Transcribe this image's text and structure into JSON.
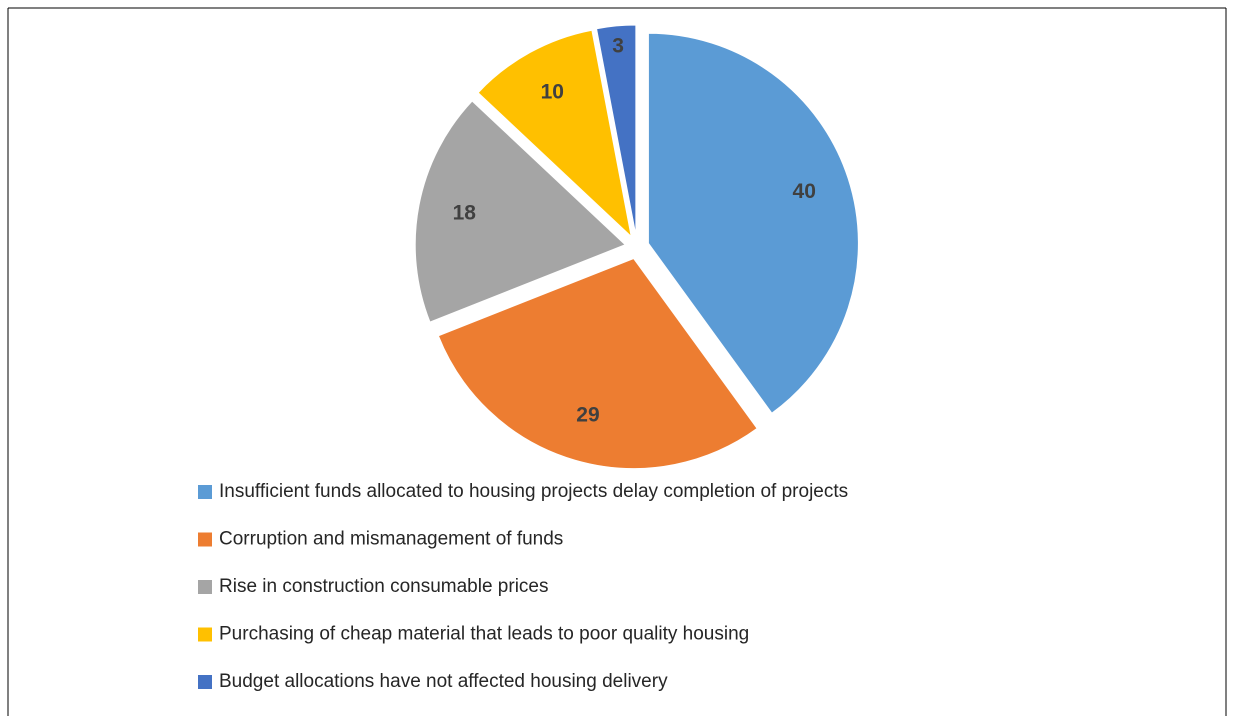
{
  "chart_data": {
    "type": "pie",
    "categories": [
      "Insufficient funds allocated to housing projects delay completion of projects",
      "Corruption and mismanagement of funds",
      "Rise in construction consumable prices",
      "Purchasing of cheap material that leads to poor quality housing",
      "Budget allocations have not affected housing delivery"
    ],
    "values": [
      40,
      29,
      18,
      10,
      3
    ],
    "colors": [
      "#5b9bd5",
      "#ed7d31",
      "#a5a5a5",
      "#ffc000",
      "#4472c4"
    ],
    "legend": "bottom"
  }
}
